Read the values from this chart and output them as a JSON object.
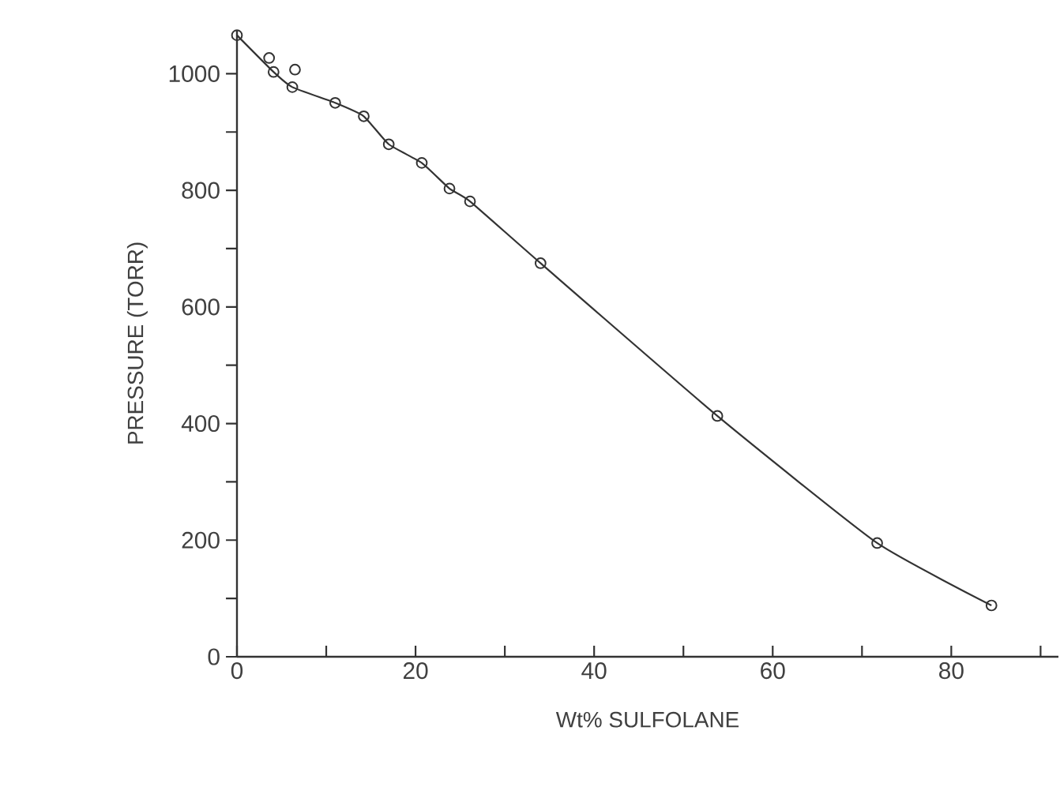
{
  "chart_data": {
    "type": "scatter",
    "xlabel": "Wt% SULFOLANE",
    "ylabel": "PRESSURE (TORR)",
    "marker": "circle",
    "xlim": [
      0,
      92
    ],
    "ylim": [
      0,
      1075
    ],
    "xticks": [
      0,
      {
        "value": 10,
        "label": null
      },
      20,
      {
        "value": 30,
        "label": null
      },
      40,
      {
        "value": 50,
        "label": null
      },
      60,
      {
        "value": 70,
        "label": null
      },
      80,
      {
        "value": 90,
        "label": null
      }
    ],
    "yticks": [
      0,
      {
        "value": 100,
        "label": null
      },
      200,
      {
        "value": 300,
        "label": null
      },
      400,
      {
        "value": 500,
        "label": null
      },
      600,
      {
        "value": 700,
        "label": null
      },
      800,
      {
        "value": 900,
        "label": null
      },
      1000
    ],
    "series": [
      {
        "color": "#333333",
        "x": [
          0,
          3.6,
          4.1,
          6.5,
          6.2,
          11.0,
          14.2,
          17.0,
          20.7,
          23.8,
          26.1,
          34.0,
          53.8,
          71.7,
          84.5
        ],
        "values": [
          1066,
          1027,
          1003,
          1007,
          977,
          950,
          927,
          879,
          847,
          803,
          781,
          675,
          413,
          195,
          88
        ]
      },
      {
        "type": "line",
        "color": "#333333",
        "marker": "none",
        "x": [
          0,
          4.1,
          6.2,
          11.0,
          14.2,
          17.0,
          20.7,
          23.8,
          26.1,
          34.0,
          53.8,
          71.7,
          84.5
        ],
        "values": [
          1066,
          1003,
          977,
          950,
          927,
          879,
          847,
          803,
          781,
          675,
          413,
          195,
          88
        ]
      }
    ]
  }
}
